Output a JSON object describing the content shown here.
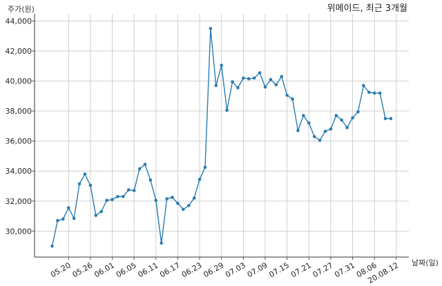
{
  "chart_data": {
    "type": "line",
    "title": "위메이드, 최근 3개월",
    "ylabel": "주가(원)",
    "xlabel": "날짜(일)",
    "ylim": [
      28500,
      44000
    ],
    "yticks": [
      30000,
      32000,
      34000,
      36000,
      38000,
      40000,
      42000,
      44000
    ],
    "ytick_labels": [
      "30,000",
      "32,000",
      "34,000",
      "36,000",
      "38,000",
      "40,000",
      "42,000",
      "44,000"
    ],
    "xtick_labels": [
      "05.20",
      "05.26",
      "06.01",
      "06.05",
      "06.11",
      "06.17",
      "06.23",
      "06.29",
      "07.03",
      "07.09",
      "07.15",
      "07.21",
      "07.27",
      "07.31",
      "08.06",
      "20.08.12"
    ],
    "xtick_index": [
      3,
      7,
      11,
      15,
      19,
      23,
      27,
      31,
      35,
      39,
      43,
      47,
      51,
      55,
      59,
      63
    ],
    "grid": true,
    "line_color": "#2b7bb0",
    "series": [
      {
        "values": [
          29000,
          30700,
          30800,
          31550,
          30850,
          33150,
          33800,
          33050,
          31050,
          31300,
          32050,
          32100,
          32300,
          32300,
          32750,
          32700,
          34150,
          34450,
          33400,
          32050,
          29200,
          32150,
          32250,
          31850,
          31450,
          31700,
          32200,
          33450,
          34250,
          43500,
          39700,
          41050,
          38050,
          39950,
          39550,
          40200,
          40150,
          40200,
          40550,
          39600,
          40100,
          39750,
          40300,
          39050,
          38800,
          36700,
          37700,
          37200,
          36300,
          36050,
          36650,
          36800,
          37700,
          37400,
          36900,
          37550,
          37950,
          39700,
          39250,
          39200,
          39200,
          37500,
          37500
        ]
      }
    ]
  }
}
